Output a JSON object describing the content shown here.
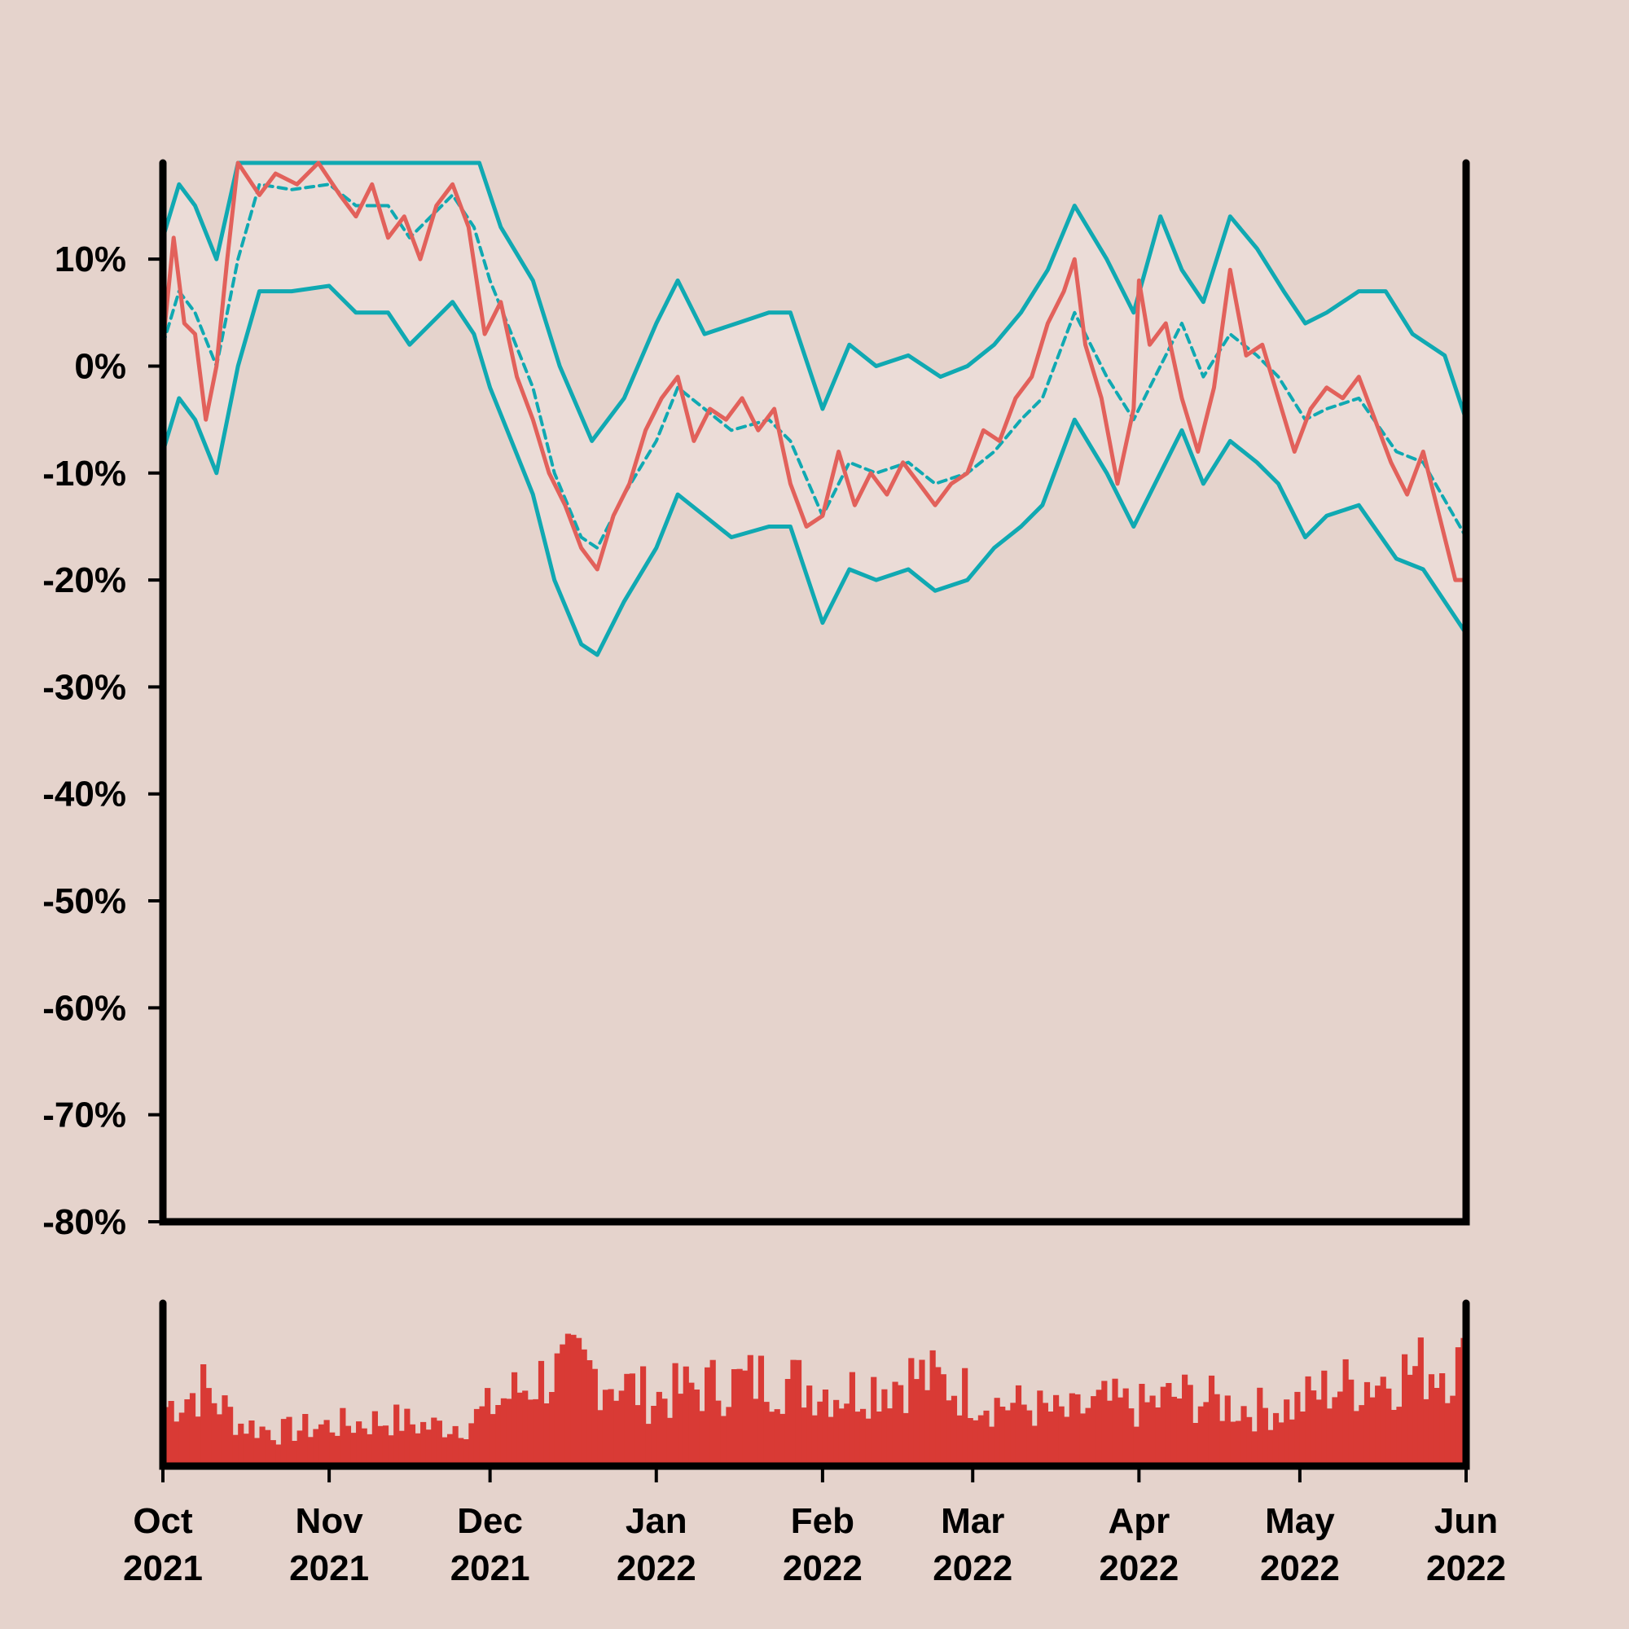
{
  "colors": {
    "background": "#e5d3cc",
    "band_fill": "#ebdcd7",
    "price_line": "#e2615b",
    "band_line": "#10a9b2",
    "volume_bars": "#d93a35",
    "axis": "#000000"
  },
  "chart_data": [
    {
      "type": "line",
      "title": "",
      "xlabel": "",
      "ylabel": "",
      "ylim": [
        -80,
        19
      ],
      "y_tick_labels": [
        "10%",
        "0%",
        "-10%",
        "-20%",
        "-30%",
        "-40%",
        "-50%",
        "-60%",
        "-70%",
        "-80%"
      ],
      "y_tick_values": [
        10,
        0,
        -10,
        -20,
        -30,
        -40,
        -50,
        -60,
        -70,
        -80
      ],
      "x_tick_labels": [
        [
          "Oct",
          "2021"
        ],
        [
          "Nov",
          "2021"
        ],
        [
          "Dec",
          "2021"
        ],
        [
          "Jan",
          "2022"
        ],
        [
          "Feb",
          "2022"
        ],
        [
          "Mar",
          "2022"
        ],
        [
          "Apr",
          "2022"
        ],
        [
          "May",
          "2022"
        ],
        [
          "Jun",
          "2022"
        ]
      ],
      "x_tick_dates": [
        "2021-10-01",
        "2021-11-01",
        "2021-12-01",
        "2022-01-01",
        "2022-02-01",
        "2022-03-01",
        "2022-04-01",
        "2022-05-01",
        "2022-06-01"
      ],
      "grid": false,
      "series_points": {
        "price": [
          [
            "2021-10-01",
            2
          ],
          [
            "2021-10-03",
            12
          ],
          [
            "2021-10-05",
            4
          ],
          [
            "2021-10-07",
            3
          ],
          [
            "2021-10-09",
            -5
          ],
          [
            "2021-10-11",
            0
          ],
          [
            "2021-10-13",
            10
          ],
          [
            "2021-10-15",
            19
          ],
          [
            "2021-10-19",
            16
          ],
          [
            "2021-10-22",
            18
          ],
          [
            "2021-10-26",
            17
          ],
          [
            "2021-10-30",
            19
          ],
          [
            "2021-11-03",
            16
          ],
          [
            "2021-11-06",
            14
          ],
          [
            "2021-11-09",
            17
          ],
          [
            "2021-11-12",
            12
          ],
          [
            "2021-11-15",
            14
          ],
          [
            "2021-11-18",
            10
          ],
          [
            "2021-11-21",
            15
          ],
          [
            "2021-11-24",
            17
          ],
          [
            "2021-11-27",
            13
          ],
          [
            "2021-11-30",
            3
          ],
          [
            "2021-12-03",
            6
          ],
          [
            "2021-12-06",
            -1
          ],
          [
            "2021-12-09",
            -5
          ],
          [
            "2021-12-12",
            -10
          ],
          [
            "2021-12-15",
            -13
          ],
          [
            "2021-12-18",
            -17
          ],
          [
            "2021-12-21",
            -19
          ],
          [
            "2021-12-24",
            -14
          ],
          [
            "2021-12-27",
            -11
          ],
          [
            "2021-12-30",
            -6
          ],
          [
            "2022-01-02",
            -3
          ],
          [
            "2022-01-05",
            -1
          ],
          [
            "2022-01-08",
            -7
          ],
          [
            "2022-01-11",
            -4
          ],
          [
            "2022-01-14",
            -5
          ],
          [
            "2022-01-17",
            -3
          ],
          [
            "2022-01-20",
            -6
          ],
          [
            "2022-01-23",
            -4
          ],
          [
            "2022-01-26",
            -11
          ],
          [
            "2022-01-29",
            -15
          ],
          [
            "2022-02-01",
            -14
          ],
          [
            "2022-02-04",
            -8
          ],
          [
            "2022-02-07",
            -13
          ],
          [
            "2022-02-10",
            -10
          ],
          [
            "2022-02-13",
            -12
          ],
          [
            "2022-02-16",
            -9
          ],
          [
            "2022-02-19",
            -11
          ],
          [
            "2022-02-22",
            -13
          ],
          [
            "2022-02-25",
            -11
          ],
          [
            "2022-02-28",
            -10
          ],
          [
            "2022-03-03",
            -6
          ],
          [
            "2022-03-06",
            -7
          ],
          [
            "2022-03-09",
            -3
          ],
          [
            "2022-03-12",
            -1
          ],
          [
            "2022-03-15",
            4
          ],
          [
            "2022-03-18",
            7
          ],
          [
            "2022-03-20",
            10
          ],
          [
            "2022-03-22",
            2
          ],
          [
            "2022-03-25",
            -3
          ],
          [
            "2022-03-28",
            -11
          ],
          [
            "2022-03-31",
            -4
          ],
          [
            "2022-04-01",
            8
          ],
          [
            "2022-04-03",
            2
          ],
          [
            "2022-04-06",
            4
          ],
          [
            "2022-04-09",
            -3
          ],
          [
            "2022-04-12",
            -8
          ],
          [
            "2022-04-15",
            -2
          ],
          [
            "2022-04-18",
            9
          ],
          [
            "2022-04-21",
            1
          ],
          [
            "2022-04-24",
            2
          ],
          [
            "2022-04-27",
            -3
          ],
          [
            "2022-04-30",
            -8
          ],
          [
            "2022-05-03",
            -4
          ],
          [
            "2022-05-06",
            -2
          ],
          [
            "2022-05-09",
            -3
          ],
          [
            "2022-05-12",
            -1
          ],
          [
            "2022-05-15",
            -5
          ],
          [
            "2022-05-18",
            -9
          ],
          [
            "2022-05-21",
            -12
          ],
          [
            "2022-05-24",
            -8
          ],
          [
            "2022-05-27",
            -14
          ],
          [
            "2022-05-30",
            -20
          ],
          [
            "2022-06-01",
            -20
          ]
        ],
        "band_middle": [
          [
            "2021-10-01",
            2
          ],
          [
            "2021-10-04",
            7
          ],
          [
            "2021-10-07",
            5
          ],
          [
            "2021-10-11",
            0
          ],
          [
            "2021-10-15",
            10
          ],
          [
            "2021-10-19",
            17
          ],
          [
            "2021-10-25",
            16.5
          ],
          [
            "2021-11-01",
            17
          ],
          [
            "2021-11-06",
            15
          ],
          [
            "2021-11-12",
            15
          ],
          [
            "2021-11-16",
            12
          ],
          [
            "2021-11-20",
            14
          ],
          [
            "2021-11-24",
            16
          ],
          [
            "2021-11-28",
            13
          ],
          [
            "2021-12-01",
            8
          ],
          [
            "2021-12-05",
            3
          ],
          [
            "2021-12-09",
            -2
          ],
          [
            "2021-12-13",
            -10
          ],
          [
            "2021-12-18",
            -16
          ],
          [
            "2021-12-21",
            -17
          ],
          [
            "2021-12-26",
            -12
          ],
          [
            "2022-01-01",
            -7
          ],
          [
            "2022-01-05",
            -2
          ],
          [
            "2022-01-10",
            -4
          ],
          [
            "2022-01-15",
            -6
          ],
          [
            "2022-01-22",
            -5
          ],
          [
            "2022-01-26",
            -7
          ],
          [
            "2022-02-01",
            -14
          ],
          [
            "2022-02-06",
            -9
          ],
          [
            "2022-02-11",
            -10
          ],
          [
            "2022-02-17",
            -9
          ],
          [
            "2022-02-22",
            -11
          ],
          [
            "2022-02-28",
            -10
          ],
          [
            "2022-03-05",
            -8
          ],
          [
            "2022-03-10",
            -5
          ],
          [
            "2022-03-14",
            -3
          ],
          [
            "2022-03-20",
            5
          ],
          [
            "2022-03-26",
            -1
          ],
          [
            "2022-03-31",
            -5
          ],
          [
            "2022-04-04",
            -1
          ],
          [
            "2022-04-09",
            4
          ],
          [
            "2022-04-13",
            -1
          ],
          [
            "2022-04-18",
            3
          ],
          [
            "2022-04-23",
            1
          ],
          [
            "2022-04-27",
            -1
          ],
          [
            "2022-05-02",
            -5
          ],
          [
            "2022-05-06",
            -4
          ],
          [
            "2022-05-12",
            -3
          ],
          [
            "2022-05-19",
            -8
          ],
          [
            "2022-05-24",
            -9
          ],
          [
            "2022-06-01",
            -16
          ]
        ],
        "band_upper": [
          [
            "2021-10-01",
            12
          ],
          [
            "2021-10-04",
            17
          ],
          [
            "2021-10-07",
            15
          ],
          [
            "2021-10-11",
            10
          ],
          [
            "2021-10-15",
            19
          ],
          [
            "2021-11-29",
            19
          ],
          [
            "2021-12-03",
            13
          ],
          [
            "2021-12-09",
            8
          ],
          [
            "2021-12-14",
            0
          ],
          [
            "2021-12-20",
            -7
          ],
          [
            "2021-12-26",
            -3
          ],
          [
            "2022-01-01",
            4
          ],
          [
            "2022-01-05",
            8
          ],
          [
            "2022-01-10",
            3
          ],
          [
            "2022-01-16",
            4
          ],
          [
            "2022-01-22",
            5
          ],
          [
            "2022-01-26",
            5
          ],
          [
            "2022-02-01",
            -4
          ],
          [
            "2022-02-06",
            2
          ],
          [
            "2022-02-11",
            0
          ],
          [
            "2022-02-17",
            1
          ],
          [
            "2022-02-23",
            -1
          ],
          [
            "2022-02-28",
            0
          ],
          [
            "2022-03-05",
            2
          ],
          [
            "2022-03-10",
            5
          ],
          [
            "2022-03-15",
            9
          ],
          [
            "2022-03-20",
            15
          ],
          [
            "2022-03-26",
            10
          ],
          [
            "2022-03-31",
            5
          ],
          [
            "2022-04-05",
            14
          ],
          [
            "2022-04-09",
            9
          ],
          [
            "2022-04-13",
            6
          ],
          [
            "2022-04-18",
            14
          ],
          [
            "2022-04-23",
            11
          ],
          [
            "2022-04-28",
            7
          ],
          [
            "2022-05-02",
            4
          ],
          [
            "2022-05-06",
            5
          ],
          [
            "2022-05-12",
            7
          ],
          [
            "2022-05-17",
            7
          ],
          [
            "2022-05-22",
            3
          ],
          [
            "2022-05-28",
            1
          ],
          [
            "2022-06-01",
            -5
          ]
        ],
        "band_lower": [
          [
            "2021-10-01",
            -8
          ],
          [
            "2021-10-04",
            -3
          ],
          [
            "2021-10-07",
            -5
          ],
          [
            "2021-10-11",
            -10
          ],
          [
            "2021-10-15",
            0
          ],
          [
            "2021-10-19",
            7
          ],
          [
            "2021-10-25",
            7
          ],
          [
            "2021-11-01",
            7.5
          ],
          [
            "2021-11-06",
            5
          ],
          [
            "2021-11-12",
            5
          ],
          [
            "2021-11-16",
            2
          ],
          [
            "2021-11-20",
            4
          ],
          [
            "2021-11-24",
            6
          ],
          [
            "2021-11-28",
            3
          ],
          [
            "2021-12-01",
            -2
          ],
          [
            "2021-12-05",
            -7
          ],
          [
            "2021-12-09",
            -12
          ],
          [
            "2021-12-13",
            -20
          ],
          [
            "2021-12-18",
            -26
          ],
          [
            "2021-12-21",
            -27
          ],
          [
            "2021-12-26",
            -22
          ],
          [
            "2022-01-01",
            -17
          ],
          [
            "2022-01-05",
            -12
          ],
          [
            "2022-01-10",
            -14
          ],
          [
            "2022-01-15",
            -16
          ],
          [
            "2022-01-22",
            -15
          ],
          [
            "2022-01-26",
            -15
          ],
          [
            "2022-02-01",
            -24
          ],
          [
            "2022-02-06",
            -19
          ],
          [
            "2022-02-11",
            -20
          ],
          [
            "2022-02-17",
            -19
          ],
          [
            "2022-02-22",
            -21
          ],
          [
            "2022-02-28",
            -20
          ],
          [
            "2022-03-05",
            -17
          ],
          [
            "2022-03-10",
            -15
          ],
          [
            "2022-03-14",
            -13
          ],
          [
            "2022-03-20",
            -5
          ],
          [
            "2022-03-26",
            -10
          ],
          [
            "2022-03-31",
            -15
          ],
          [
            "2022-04-04",
            -11
          ],
          [
            "2022-04-09",
            -6
          ],
          [
            "2022-04-13",
            -11
          ],
          [
            "2022-04-18",
            -7
          ],
          [
            "2022-04-23",
            -9
          ],
          [
            "2022-04-27",
            -11
          ],
          [
            "2022-05-02",
            -16
          ],
          [
            "2022-05-06",
            -14
          ],
          [
            "2022-05-12",
            -13
          ],
          [
            "2022-05-19",
            -18
          ],
          [
            "2022-05-24",
            -19
          ],
          [
            "2022-06-01",
            -25
          ]
        ]
      }
    },
    {
      "type": "bar",
      "title": "",
      "xlabel": "",
      "ylabel": "",
      "ylim": [
        0,
        1
      ],
      "grid": false,
      "volume_weekly_level": [
        [
          "2021-10-01",
          0.42
        ],
        [
          "2021-10-08",
          0.55
        ],
        [
          "2021-10-15",
          0.3
        ],
        [
          "2021-10-22",
          0.24
        ],
        [
          "2021-10-29",
          0.28
        ],
        [
          "2021-11-05",
          0.3
        ],
        [
          "2021-11-12",
          0.33
        ],
        [
          "2021-11-19",
          0.28
        ],
        [
          "2021-11-26",
          0.3
        ],
        [
          "2021-12-03",
          0.48
        ],
        [
          "2021-12-10",
          0.62
        ],
        [
          "2021-12-17",
          0.7
        ],
        [
          "2021-12-24",
          0.6
        ],
        [
          "2021-12-31",
          0.48
        ],
        [
          "2022-01-07",
          0.55
        ],
        [
          "2022-01-14",
          0.58
        ],
        [
          "2022-01-21",
          0.62
        ],
        [
          "2022-01-28",
          0.58
        ],
        [
          "2022-02-04",
          0.52
        ],
        [
          "2022-02-11",
          0.58
        ],
        [
          "2022-02-18",
          0.64
        ],
        [
          "2022-02-25",
          0.56
        ],
        [
          "2022-03-04",
          0.45
        ],
        [
          "2022-03-11",
          0.42
        ],
        [
          "2022-03-18",
          0.36
        ],
        [
          "2022-03-25",
          0.45
        ],
        [
          "2022-04-01",
          0.42
        ],
        [
          "2022-04-08",
          0.5
        ],
        [
          "2022-04-15",
          0.45
        ],
        [
          "2022-04-22",
          0.4
        ],
        [
          "2022-04-29",
          0.42
        ],
        [
          "2022-05-06",
          0.55
        ],
        [
          "2022-05-13",
          0.6
        ],
        [
          "2022-05-20",
          0.66
        ],
        [
          "2022-05-27",
          0.72
        ],
        [
          "2022-06-01",
          0.7
        ]
      ]
    }
  ]
}
